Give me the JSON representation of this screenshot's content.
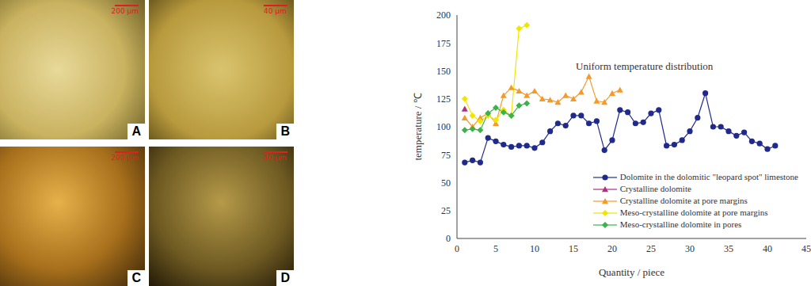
{
  "panels": [
    {
      "label": "A",
      "scale_bar": "200 μm"
    },
    {
      "label": "B",
      "scale_bar": "40 μm"
    },
    {
      "label": "C",
      "scale_bar": "200 μm"
    },
    {
      "label": "D",
      "scale_bar": "40 μm"
    }
  ],
  "chart_data": {
    "type": "line",
    "title": "Uniform temperature distribution",
    "x_label": "Quantity / piece",
    "y_label": "temperature / ℃",
    "xlim": [
      0,
      45
    ],
    "xticks": [
      0,
      5,
      10,
      15,
      20,
      25,
      30,
      35,
      40,
      45
    ],
    "ylim": [
      0,
      200
    ],
    "yticks": [
      0,
      25,
      50,
      75,
      100,
      125,
      150,
      175,
      200
    ],
    "grid": false,
    "legend": "lower right",
    "series": [
      {
        "name": "Dolomite in the dolomitic \"leopard spot\" limestone",
        "color": "#1f2a8a",
        "marker": "circle",
        "x": [
          1,
          2,
          3,
          4,
          5,
          6,
          7,
          8,
          9,
          10,
          11,
          12,
          13,
          14,
          15,
          16,
          17,
          18,
          19,
          20,
          21,
          22,
          23,
          24,
          25,
          26,
          27,
          28,
          29,
          30,
          31,
          32,
          33,
          34,
          35,
          36,
          37,
          38,
          39,
          40,
          41
        ],
        "values": [
          68,
          70,
          68,
          90,
          87,
          84,
          82,
          83,
          83,
          81,
          86,
          96,
          103,
          101,
          110,
          110,
          103,
          105,
          79,
          88,
          115,
          113,
          103,
          104,
          112,
          115,
          83,
          84,
          88,
          96,
          108,
          130,
          100,
          100,
          96,
          92,
          95,
          87,
          85,
          80,
          83
        ]
      },
      {
        "name": "Crystalline dolomite",
        "color": "#b0307f",
        "marker": "triangle",
        "x": [
          1
        ],
        "values": [
          116
        ]
      },
      {
        "name": "Crystalline dolomite at pore margins",
        "color": "#f59a2a",
        "marker": "triangle",
        "x": [
          1,
          2,
          3,
          4,
          5,
          6,
          7,
          8,
          9,
          10,
          11,
          12,
          13,
          14,
          15,
          16,
          17,
          18,
          19,
          20,
          21
        ],
        "values": [
          108,
          100,
          108,
          112,
          103,
          128,
          135,
          132,
          128,
          132,
          125,
          124,
          122,
          128,
          125,
          131,
          145,
          123,
          122,
          130,
          133
        ]
      },
      {
        "name": "Meso-crystalline dolomite at pore margins",
        "color": "#f2e600",
        "marker": "diamond",
        "x": [
          1,
          2,
          3,
          4,
          5,
          6,
          7,
          8,
          9
        ],
        "values": [
          125,
          110,
          105,
          110,
          106,
          115,
          110,
          188,
          191
        ]
      },
      {
        "name": "Meso-crystalline dolomite in pores",
        "color": "#3cb34a",
        "marker": "diamond",
        "x": [
          1,
          2,
          3,
          4,
          5,
          6,
          7,
          8,
          9
        ],
        "values": [
          97,
          98,
          97,
          112,
          117,
          113,
          110,
          119,
          121
        ]
      }
    ]
  }
}
